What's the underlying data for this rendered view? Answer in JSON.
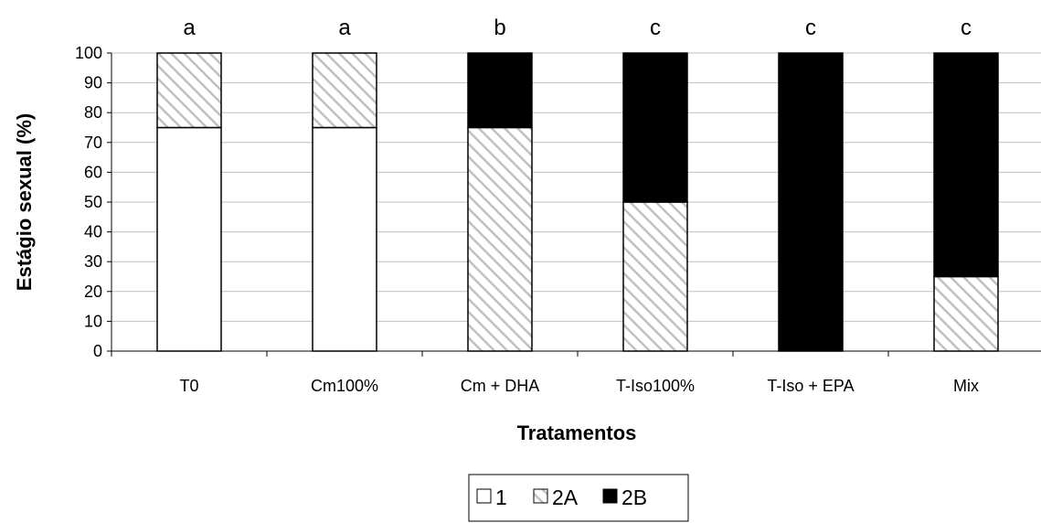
{
  "chart_data": {
    "type": "bar",
    "stacked": true,
    "xlabel": "Tratamentos",
    "ylabel": "Estágio sexual (%)",
    "ylim": [
      0,
      100
    ],
    "yticks": [
      0,
      10,
      20,
      30,
      40,
      50,
      60,
      70,
      80,
      90,
      100
    ],
    "grid": true,
    "categories": [
      "T0",
      "Cm100%",
      "Cm + DHA",
      "T-Iso100%",
      "T-Iso + EPA",
      "Mix"
    ],
    "significance_letters": [
      "a",
      "a",
      "b",
      "c",
      "c",
      "c"
    ],
    "legend_position": "bottom",
    "series": [
      {
        "name": "1",
        "values": [
          75,
          75,
          0,
          0,
          0,
          0
        ],
        "pattern": "white"
      },
      {
        "name": "2A",
        "values": [
          25,
          25,
          75,
          50,
          0,
          25
        ],
        "pattern": "diagonal-hatch"
      },
      {
        "name": "2B",
        "values": [
          0,
          0,
          25,
          50,
          100,
          75
        ],
        "pattern": "black"
      }
    ],
    "colors": {
      "white_fill": "#ffffff",
      "hatch_line": "#c0c0c0",
      "black_fill": "#000000",
      "grid": "#c0c0c0"
    }
  }
}
